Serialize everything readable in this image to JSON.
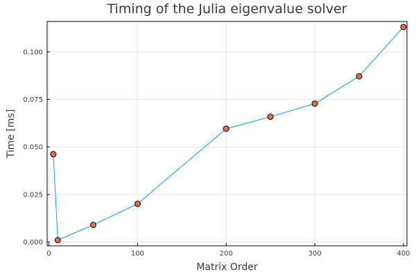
{
  "chart_data": {
    "type": "line",
    "title": "Timing of the Julia eigenvalue solver",
    "xlabel": "Matrix Order",
    "ylabel": "Time [ms]",
    "xlim": [
      -2,
      404
    ],
    "ylim": [
      -0.002,
      0.116
    ],
    "xticks": [
      0,
      100,
      200,
      300,
      400
    ],
    "xtick_labels": [
      "0",
      "100",
      "200",
      "300",
      "400"
    ],
    "yticks": [
      0,
      0.025,
      0.05,
      0.075,
      0.1
    ],
    "ytick_labels": [
      "0.000",
      "0.025",
      "0.050",
      "0.075",
      "0.100"
    ],
    "grid": true,
    "legend": "none",
    "series": [
      {
        "x": [
          5,
          10,
          50,
          100,
          200,
          250,
          300,
          350,
          400
        ],
        "y": [
          0.0462,
          0.001,
          0.009,
          0.0201,
          0.0596,
          0.0659,
          0.0728,
          0.0872,
          0.1131
        ],
        "line_color": "#009AFA",
        "marker_color": "#E26F46"
      }
    ]
  }
}
